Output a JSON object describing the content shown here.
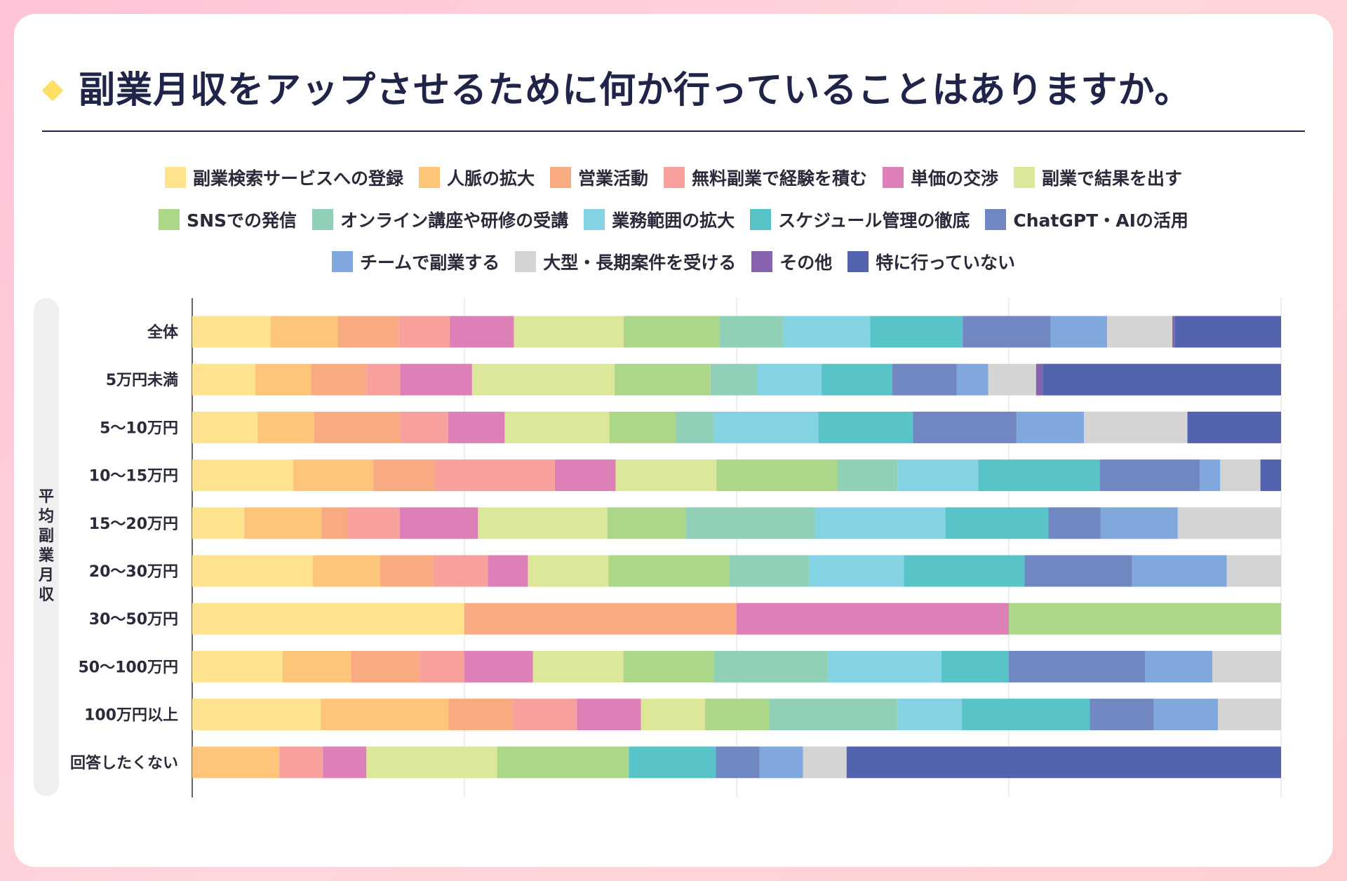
{
  "title": "副業月収をアップさせるために何か行っていることはありますか。",
  "axis_group_label": "平均副業月収",
  "legend_rows": [
    [
      0,
      1,
      2,
      3,
      4,
      5
    ],
    [
      6,
      7,
      8,
      9,
      10
    ],
    [
      11,
      12,
      13,
      14
    ]
  ],
  "chart_data": {
    "type": "bar",
    "orientation": "horizontal",
    "stacked": true,
    "normalized": true,
    "xlim": [
      0,
      1
    ],
    "grid": true,
    "legend_position": "top",
    "categories": [
      "全体",
      "5万円未満",
      "5〜10万円",
      "10〜15万円",
      "15〜20万円",
      "20〜30万円",
      "30〜50万円",
      "50〜100万円",
      "100万円以上",
      "回答したくない"
    ],
    "series": [
      {
        "name": "副業検索サービスへの登録",
        "color": "#ffe38f",
        "values": [
          0.072,
          0.058,
          0.06,
          0.093,
          0.048,
          0.111,
          0.25,
          0.083,
          0.118,
          0
        ]
      },
      {
        "name": "人脈の拡大",
        "color": "#fdc57a",
        "values": [
          0.062,
          0.051,
          0.052,
          0.074,
          0.071,
          0.062,
          0,
          0.063,
          0.118,
          0.08
        ]
      },
      {
        "name": "営業活動",
        "color": "#f8aa80",
        "values": [
          0.056,
          0.051,
          0.079,
          0.056,
          0.024,
          0.049,
          0.25,
          0.063,
          0.059,
          0
        ]
      },
      {
        "name": "無料副業で経験を積む",
        "color": "#f7a09c",
        "values": [
          0.047,
          0.031,
          0.044,
          0.111,
          0.048,
          0.05,
          0,
          0.041,
          0.059,
          0.04
        ]
      },
      {
        "name": "単価の交渉",
        "color": "#dc80b7",
        "values": [
          0.059,
          0.066,
          0.052,
          0.056,
          0.072,
          0.037,
          0.25,
          0.063,
          0.059,
          0.04
        ]
      },
      {
        "name": "副業で結果を出す",
        "color": "#dde799",
        "values": [
          0.101,
          0.131,
          0.096,
          0.093,
          0.119,
          0.074,
          0,
          0.083,
          0.059,
          0.12
        ]
      },
      {
        "name": "SNSでの発信",
        "color": "#acd688",
        "values": [
          0.088,
          0.088,
          0.061,
          0.111,
          0.072,
          0.111,
          0.25,
          0.083,
          0.059,
          0.121
        ]
      },
      {
        "name": "オンライン講座や研修の受講",
        "color": "#8fd0b6",
        "values": [
          0.059,
          0.043,
          0.035,
          0.056,
          0.119,
          0.074,
          0,
          0.105,
          0.118,
          0
        ]
      },
      {
        "name": "業務範囲の拡大",
        "color": "#84d3e4",
        "values": [
          0.08,
          0.059,
          0.096,
          0.074,
          0.12,
          0.087,
          0,
          0.104,
          0.059,
          0
        ]
      },
      {
        "name": "スケジュール管理の徹底",
        "color": "#59c4c8",
        "values": [
          0.085,
          0.065,
          0.087,
          0.112,
          0.095,
          0.111,
          0,
          0.062,
          0.118,
          0.08
        ]
      },
      {
        "name": "ChatGPT・AIの活用",
        "color": "#7187c2",
        "values": [
          0.081,
          0.059,
          0.095,
          0.092,
          0.048,
          0.099,
          0,
          0.125,
          0.059,
          0.04
        ]
      },
      {
        "name": "チームで副業する",
        "color": "#80a8dc",
        "values": [
          0.052,
          0.029,
          0.062,
          0.019,
          0.071,
          0.087,
          0,
          0.062,
          0.059,
          0.04
        ]
      },
      {
        "name": "大型・長期案件を受ける",
        "color": "#d4d4d4",
        "values": [
          0.06,
          0.044,
          0.095,
          0.037,
          0.095,
          0.05,
          0,
          0.063,
          0.058,
          0.04
        ]
      },
      {
        "name": "その他",
        "color": "#8763ae",
        "values": [
          0.002,
          0.006,
          0,
          0,
          0,
          0,
          0,
          0,
          0,
          0
        ]
      },
      {
        "name": "特に行っていない",
        "color": "#5463b0",
        "values": [
          0.098,
          0.219,
          0.086,
          0.019,
          0,
          0,
          0,
          0,
          0,
          0.399
        ]
      }
    ]
  }
}
